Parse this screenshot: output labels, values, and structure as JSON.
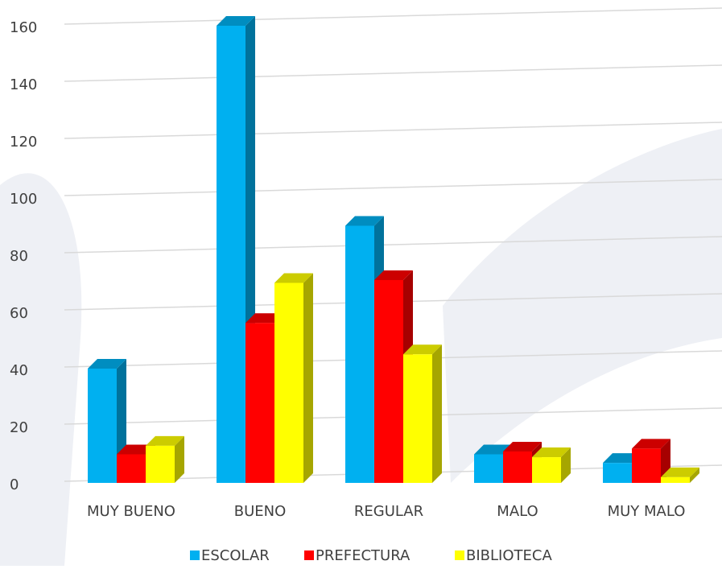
{
  "chart_data": {
    "type": "bar3d",
    "categories": [
      "MUY BUENO",
      "BUENO",
      "REGULAR",
      "MALO",
      "MUY MALO"
    ],
    "series": [
      {
        "name": "ESCOLAR",
        "color": "#00b0f0",
        "values": [
          40,
          160,
          90,
          10,
          7
        ]
      },
      {
        "name": "PREFECTURA",
        "color": "#ff0000",
        "values": [
          10,
          56,
          71,
          11,
          12
        ]
      },
      {
        "name": "BIBLIOTECA",
        "color": "#ffff00",
        "values": [
          13,
          70,
          45,
          9,
          2
        ]
      }
    ],
    "ylim": [
      0,
      160
    ],
    "yticks": [
      0,
      20,
      40,
      60,
      80,
      100,
      120,
      140,
      160
    ],
    "grid": true,
    "legend": "bottom"
  }
}
